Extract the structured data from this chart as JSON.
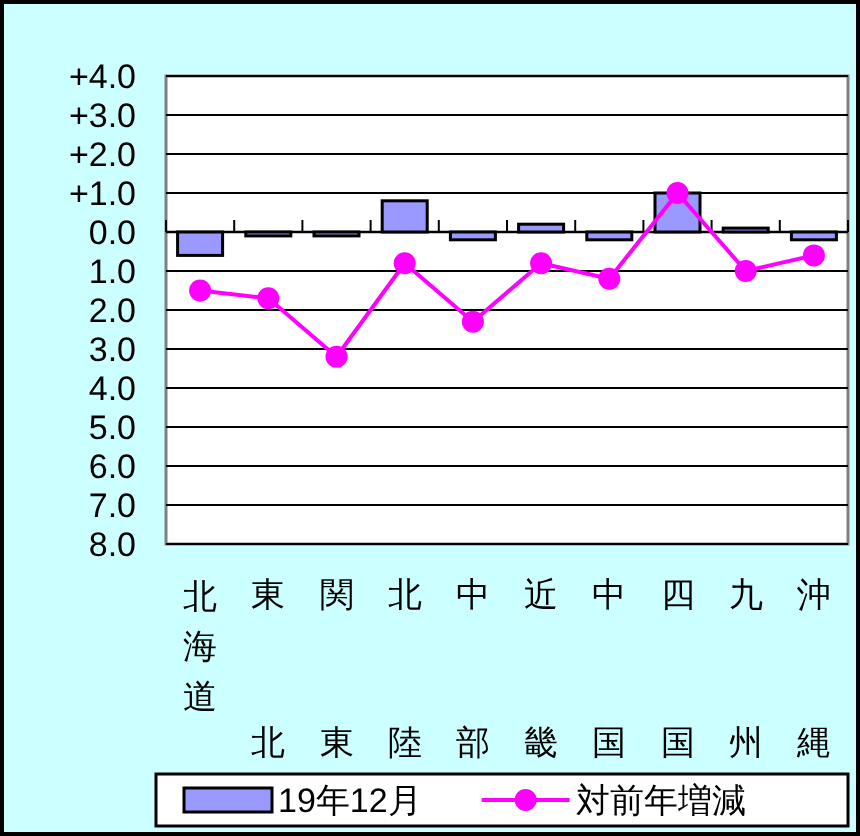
{
  "chart_data": {
    "type": "bar",
    "categories": [
      "北海道",
      "東北",
      "関東",
      "北陸",
      "中部",
      "近畿",
      "中国",
      "四国",
      "九州",
      "沖縄"
    ],
    "series": [
      {
        "name": "19年12月",
        "type": "bar",
        "color": "#9999ff",
        "values": [
          -0.6,
          -0.1,
          -0.1,
          0.8,
          -0.2,
          0.2,
          -0.2,
          1.0,
          0.1,
          -0.2
        ]
      },
      {
        "name": "対前年増減",
        "type": "line",
        "color": "#ff00ff",
        "values": [
          -1.5,
          -1.7,
          -3.2,
          -0.8,
          -2.3,
          -0.8,
          -1.2,
          1.0,
          -1.0,
          -0.6
        ]
      }
    ],
    "ylim": [
      -8,
      4
    ],
    "yticks": [
      {
        "value": 4,
        "label": "+4.0"
      },
      {
        "value": 3,
        "label": "+3.0"
      },
      {
        "value": 2,
        "label": "+2.0"
      },
      {
        "value": 1,
        "label": "+1.0"
      },
      {
        "value": 0,
        "label": "0.0"
      },
      {
        "value": -1,
        "label": "1.0"
      },
      {
        "value": -2,
        "label": "2.0"
      },
      {
        "value": -3,
        "label": "3.0"
      },
      {
        "value": -4,
        "label": "4.0"
      },
      {
        "value": -5,
        "label": "5.0"
      },
      {
        "value": -6,
        "label": "6.0"
      },
      {
        "value": -7,
        "label": "7.0"
      },
      {
        "value": -8,
        "label": "8.0"
      }
    ],
    "grid": "y",
    "legend": "bottom",
    "marker": "circle"
  }
}
